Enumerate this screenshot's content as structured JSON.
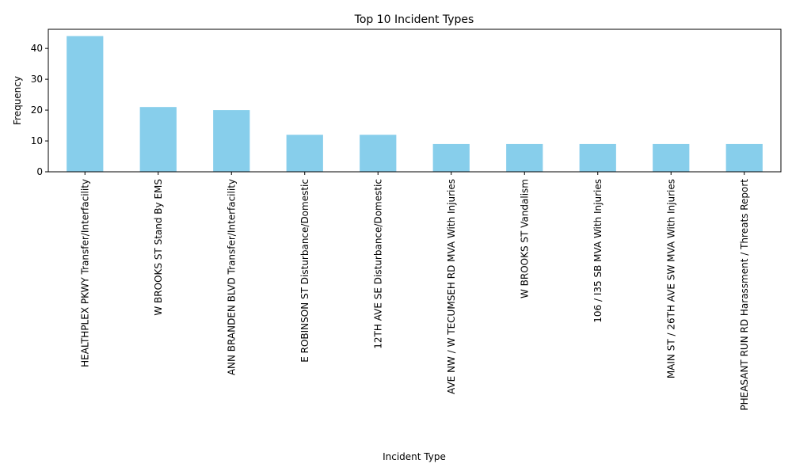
{
  "chart_data": {
    "type": "bar",
    "title": "Top 10 Incident Types",
    "xlabel": "Incident Type",
    "ylabel": "Frequency",
    "ylim": [
      0,
      46.2
    ],
    "yticks": [
      0,
      10,
      20,
      30,
      40
    ],
    "grid": false,
    "legend": "none",
    "bar_color": "#87ceeb",
    "categories": [
      "HEALTHPLEX PKWY Transfer/Interfacility",
      "W BROOKS ST Stand By EMS",
      "ANN BRANDEN BLVD Transfer/Interfacility",
      "E ROBINSON ST Disturbance/Domestic",
      "12TH AVE SE Disturbance/Domestic",
      "AVE NW / W TECUMSEH RD MVA With Injuries",
      "W BROOKS ST Vandalism",
      "106 / I35 SB MVA With Injuries",
      "MAIN ST / 26TH AVE SW MVA With Injuries",
      "PHEASANT RUN RD Harassment / Threats Report"
    ],
    "values": [
      44,
      21,
      20,
      12,
      12,
      9,
      9,
      9,
      9,
      9
    ]
  }
}
